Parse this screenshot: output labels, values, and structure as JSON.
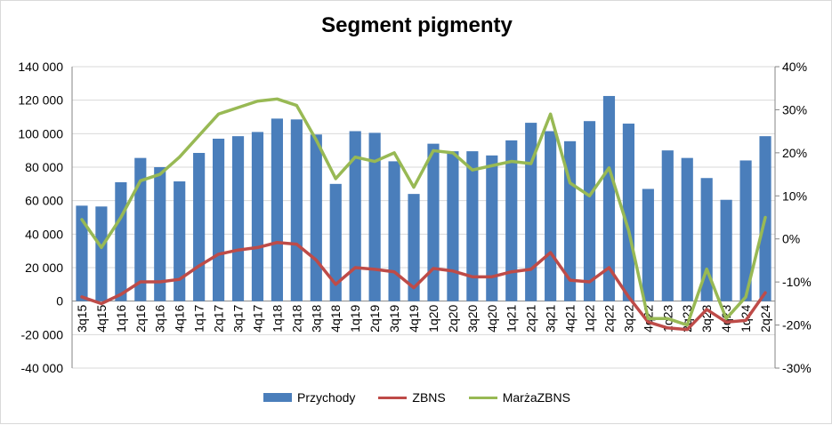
{
  "chart_data": {
    "type": "bar",
    "title": "Segment pigmenty",
    "categories": [
      "3q15",
      "4q15",
      "1q16",
      "2q16",
      "3q16",
      "4q16",
      "1q17",
      "2q17",
      "3q17",
      "4q17",
      "1q18",
      "2q18",
      "3q18",
      "4q18",
      "1q19",
      "2q19",
      "3q19",
      "4q19",
      "1q20",
      "2q20",
      "3q20",
      "4q20",
      "1q21",
      "2q21",
      "3q21",
      "4q21",
      "1q22",
      "2q22",
      "3q22",
      "4q22",
      "1q23",
      "2q23",
      "3q23",
      "4q23",
      "1q24",
      "2q24"
    ],
    "series": [
      {
        "name": "Przychody",
        "type": "bar",
        "axis": "left",
        "color": "#4a7ebb",
        "values": [
          57000,
          56500,
          71000,
          85500,
          80000,
          71500,
          88500,
          97000,
          98500,
          101000,
          109000,
          108500,
          99500,
          70000,
          101500,
          100500,
          83500,
          64000,
          94000,
          89500,
          89500,
          87000,
          96000,
          106500,
          101500,
          95500,
          107500,
          122500,
          106000,
          67000,
          90000,
          85500,
          73500,
          60500,
          84000,
          98500
        ]
      },
      {
        "name": "ZBNS",
        "type": "line",
        "axis": "left",
        "color": "#be4b48",
        "values": [
          2500,
          -1500,
          4000,
          11500,
          11500,
          13000,
          21000,
          28000,
          30500,
          32000,
          35000,
          34000,
          24500,
          10000,
          20000,
          19000,
          17500,
          8000,
          19500,
          18000,
          14500,
          14500,
          17500,
          19000,
          29000,
          12500,
          11500,
          20000,
          2500,
          -12500,
          -16000,
          -17000,
          -5000,
          -12500,
          -11500,
          5000
        ]
      },
      {
        "name": "MarżaZBNS",
        "type": "line",
        "axis": "right",
        "color": "#98b954",
        "values": [
          4.5,
          -2,
          5,
          13.5,
          15,
          19,
          24,
          29,
          30.5,
          32,
          32.5,
          31,
          23,
          14,
          19,
          18,
          20,
          12,
          20.5,
          20,
          16,
          17,
          18,
          17.5,
          29,
          13,
          10,
          16.5,
          2,
          -18.5,
          -18.5,
          -20,
          -7,
          -18.5,
          -13.5,
          5
        ]
      }
    ],
    "y_left": {
      "min": -40000,
      "max": 140000,
      "step": 20000,
      "tick_labels": [
        "-40 000",
        "-20 000",
        "0",
        "20 000",
        "40 000",
        "60 000",
        "80 000",
        "100 000",
        "120 000",
        "140 000"
      ]
    },
    "y_right": {
      "min": -30,
      "max": 40,
      "step": 10,
      "tick_labels": [
        "-30%",
        "-20%",
        "-10%",
        "0%",
        "10%",
        "20%",
        "30%",
        "40%"
      ]
    },
    "grid": true,
    "legend_position": "bottom"
  }
}
